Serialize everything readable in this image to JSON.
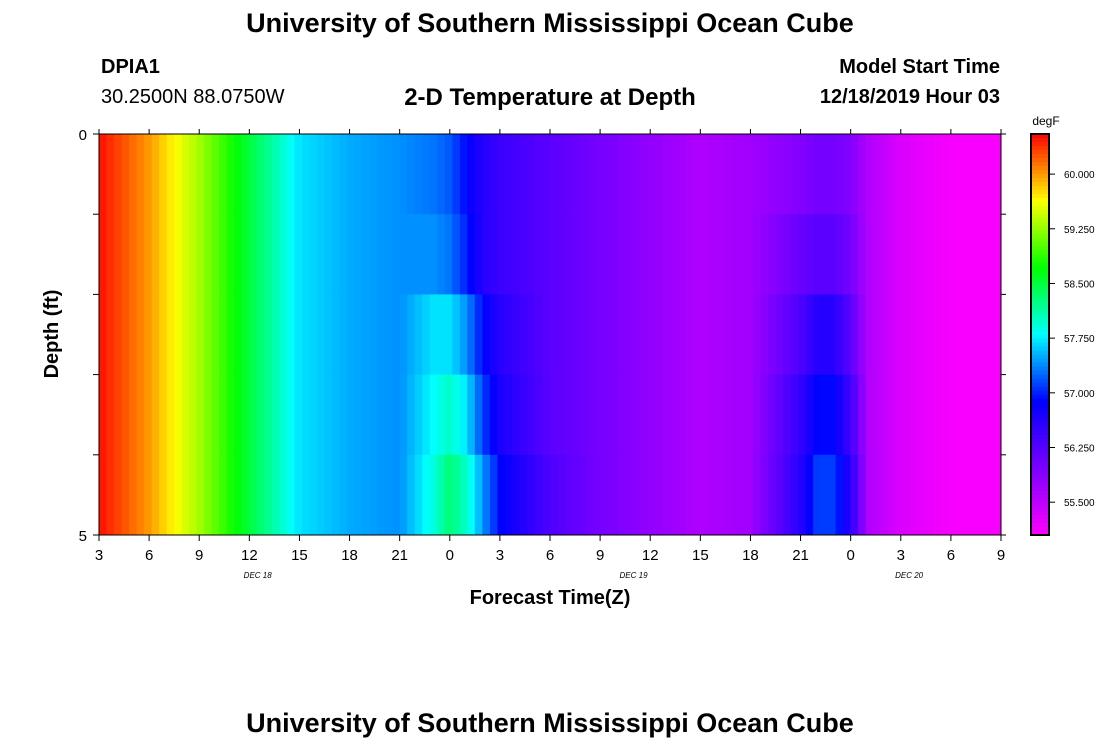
{
  "header": {
    "title": "University of Southern Mississippi Ocean Cube",
    "station_id": "DPIA1",
    "station_coords": "30.2500N 88.0750W",
    "subtitle": "2-D Temperature at Depth",
    "model_start_label": "Model Start Time",
    "model_start_value": "12/18/2019 Hour 03"
  },
  "footer": {
    "title": "University of Southern Mississippi Ocean Cube"
  },
  "chart_data": {
    "type": "heatmap",
    "title": "2-D Temperature at Depth",
    "xlabel": "Forecast Time(Z)",
    "ylabel": "Depth (ft)",
    "x_tick_labels": [
      "3",
      "6",
      "9",
      "12",
      "15",
      "18",
      "21",
      "0",
      "3",
      "6",
      "9",
      "12",
      "15",
      "18",
      "21",
      "0",
      "3",
      "6",
      "9"
    ],
    "day_labels": [
      {
        "label": "DEC 18",
        "at_hour": 9.5
      },
      {
        "label": "DEC 19",
        "at_hour": 32
      },
      {
        "label": "DEC 20",
        "at_hour": 48.5
      }
    ],
    "y_tick_labels": [
      "0",
      "5"
    ],
    "ylim": [
      0,
      5
    ],
    "xlim_hours_from_start": [
      0,
      54
    ],
    "colorbar": {
      "unit": "degF",
      "range": [
        55.05,
        60.55
      ],
      "tick_values": [
        "60.000",
        "59.250",
        "58.500",
        "57.750",
        "57.000",
        "56.250",
        "55.500"
      ],
      "colors": [
        "#ff00ff",
        "#7a00ff",
        "#0000ff",
        "#00ffff",
        "#00ff00",
        "#ffff00",
        "#ff0000"
      ]
    },
    "depth_levels": [
      0,
      1,
      2,
      3,
      4
    ],
    "time_hours": [
      0,
      3,
      6,
      9,
      12,
      15,
      18,
      20,
      21,
      22,
      23,
      24,
      27,
      30,
      33,
      36,
      39,
      42,
      43,
      44,
      45,
      46,
      48,
      51,
      54
    ],
    "values": [
      [
        60.5,
        60.0,
        59.3,
        58.5,
        57.7,
        57.5,
        57.4,
        57.3,
        57.2,
        56.9,
        56.6,
        56.45,
        56.2,
        56.0,
        55.8,
        55.6,
        55.7,
        55.9,
        56.0,
        56.0,
        55.9,
        55.6,
        55.3,
        55.1,
        55.1
      ],
      [
        60.5,
        60.0,
        59.3,
        58.5,
        57.7,
        57.5,
        57.4,
        57.4,
        57.3,
        57.0,
        56.6,
        56.45,
        56.2,
        56.0,
        55.8,
        55.6,
        55.7,
        56.1,
        56.2,
        56.2,
        56.0,
        55.6,
        55.3,
        55.1,
        55.1
      ],
      [
        60.5,
        60.0,
        59.3,
        58.5,
        57.7,
        57.5,
        57.4,
        57.7,
        57.7,
        57.4,
        56.9,
        56.6,
        56.2,
        56.0,
        55.8,
        55.6,
        55.7,
        56.3,
        56.6,
        56.6,
        56.2,
        55.6,
        55.3,
        55.1,
        55.1
      ],
      [
        60.5,
        60.0,
        59.3,
        58.5,
        57.7,
        57.5,
        57.4,
        57.8,
        58.0,
        57.7,
        57.1,
        56.7,
        56.2,
        56.0,
        55.8,
        55.6,
        55.7,
        56.5,
        56.9,
        56.9,
        56.4,
        55.6,
        55.3,
        55.1,
        55.1
      ],
      [
        60.5,
        60.0,
        59.3,
        58.5,
        57.7,
        57.5,
        57.4,
        57.9,
        58.3,
        58.0,
        57.4,
        56.9,
        56.3,
        56.0,
        55.8,
        55.6,
        55.7,
        56.6,
        57.1,
        57.1,
        56.6,
        55.6,
        55.3,
        55.1,
        55.1
      ]
    ]
  }
}
